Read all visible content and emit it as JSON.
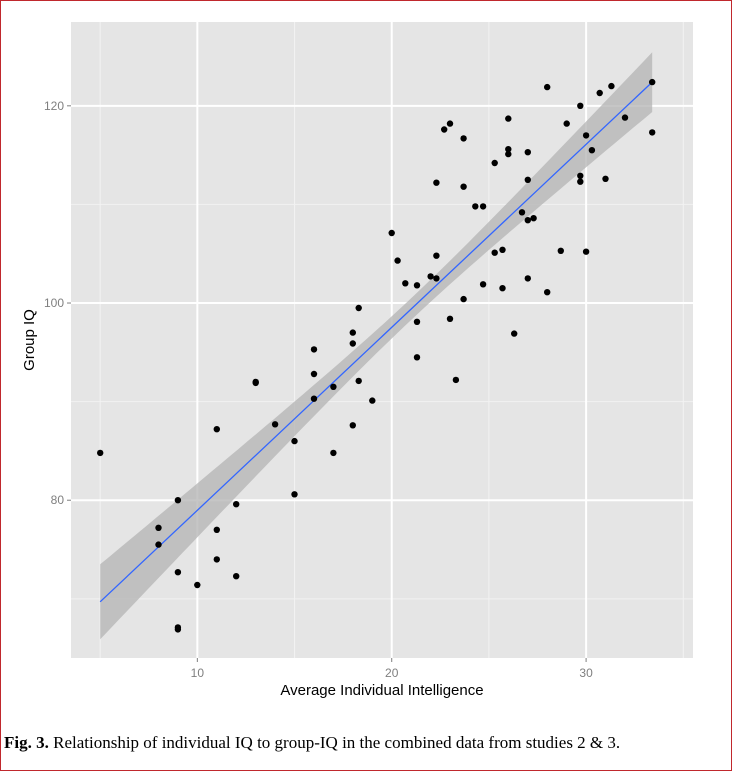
{
  "caption": {
    "label": "Fig. 3.",
    "text": " Relationship of individual IQ to group-IQ in the combined data from studies 2 & 3."
  },
  "colors": {
    "panel": "#e5e5e5",
    "grid_major": "#ffffff",
    "grid_minor": "#f2f2f2",
    "point": "#000000",
    "fit_line": "#3366ff",
    "band": "#b3b3b3",
    "frame": "#c0282d"
  },
  "chart_data": {
    "type": "scatter",
    "xlabel": "Average Individual Intelligence",
    "ylabel": "Group IQ",
    "xlim": [
      3.5,
      35.5
    ],
    "ylim": [
      64,
      128.5
    ],
    "xticks": [
      10,
      20,
      30
    ],
    "yticks": [
      80,
      100,
      120
    ],
    "grid": true,
    "fit": {
      "method": "linear",
      "x_range": [
        5,
        33.4
      ],
      "y_range": [
        69.7,
        122.4
      ],
      "band_halfwidth_at_ends": 3.8,
      "band_halfwidth_min": 1.1,
      "band_center_x": 21
    },
    "points": [
      [
        5,
        84.8
      ],
      [
        8,
        77.2
      ],
      [
        8,
        75.5
      ],
      [
        9,
        80
      ],
      [
        9,
        72.7
      ],
      [
        9,
        67.1
      ],
      [
        9,
        66.9
      ],
      [
        10,
        71.4
      ],
      [
        11,
        87.2
      ],
      [
        11,
        77
      ],
      [
        11,
        74
      ],
      [
        12,
        79.6
      ],
      [
        12,
        72.3
      ],
      [
        13,
        92
      ],
      [
        13,
        91.9
      ],
      [
        14,
        87.7
      ],
      [
        15,
        86
      ],
      [
        15,
        80.6
      ],
      [
        16,
        95.3
      ],
      [
        16,
        92.8
      ],
      [
        16,
        90.3
      ],
      [
        17,
        91.5
      ],
      [
        17,
        84.8
      ],
      [
        18,
        97
      ],
      [
        18,
        95.9
      ],
      [
        18,
        87.6
      ],
      [
        18.3,
        99.5
      ],
      [
        18.3,
        92.1
      ],
      [
        19,
        90.1
      ],
      [
        20,
        107.1
      ],
      [
        20.3,
        104.3
      ],
      [
        20.7,
        102
      ],
      [
        21.3,
        101.8
      ],
      [
        21.3,
        98.1
      ],
      [
        21.3,
        94.5
      ],
      [
        22,
        102.7
      ],
      [
        22.3,
        104.8
      ],
      [
        22.3,
        102.5
      ],
      [
        22.3,
        112.2
      ],
      [
        22.7,
        117.6
      ],
      [
        23,
        118.2
      ],
      [
        23,
        98.4
      ],
      [
        23.3,
        92.2
      ],
      [
        23.7,
        116.7
      ],
      [
        23.7,
        111.8
      ],
      [
        23.7,
        100.4
      ],
      [
        24.3,
        109.8
      ],
      [
        24.7,
        109.8
      ],
      [
        24.7,
        101.9
      ],
      [
        25.3,
        114.2
      ],
      [
        25.3,
        105.1
      ],
      [
        25.7,
        105.4
      ],
      [
        25.7,
        101.5
      ],
      [
        26,
        118.7
      ],
      [
        26,
        115.6
      ],
      [
        26,
        115.1
      ],
      [
        26.3,
        96.9
      ],
      [
        26.7,
        109.2
      ],
      [
        27,
        115.3
      ],
      [
        27,
        112.5
      ],
      [
        27,
        108.4
      ],
      [
        27,
        102.5
      ],
      [
        27.3,
        108.6
      ],
      [
        28,
        121.9
      ],
      [
        28,
        101.1
      ],
      [
        28.7,
        105.3
      ],
      [
        29,
        118.2
      ],
      [
        29.7,
        120
      ],
      [
        29.7,
        112.9
      ],
      [
        29.7,
        112.3
      ],
      [
        30,
        117
      ],
      [
        30,
        105.2
      ],
      [
        30.3,
        115.5
      ],
      [
        30.7,
        121.3
      ],
      [
        31,
        112.6
      ],
      [
        31.3,
        122
      ],
      [
        32,
        118.8
      ],
      [
        33.4,
        122.4
      ],
      [
        33.4,
        117.3
      ]
    ]
  }
}
